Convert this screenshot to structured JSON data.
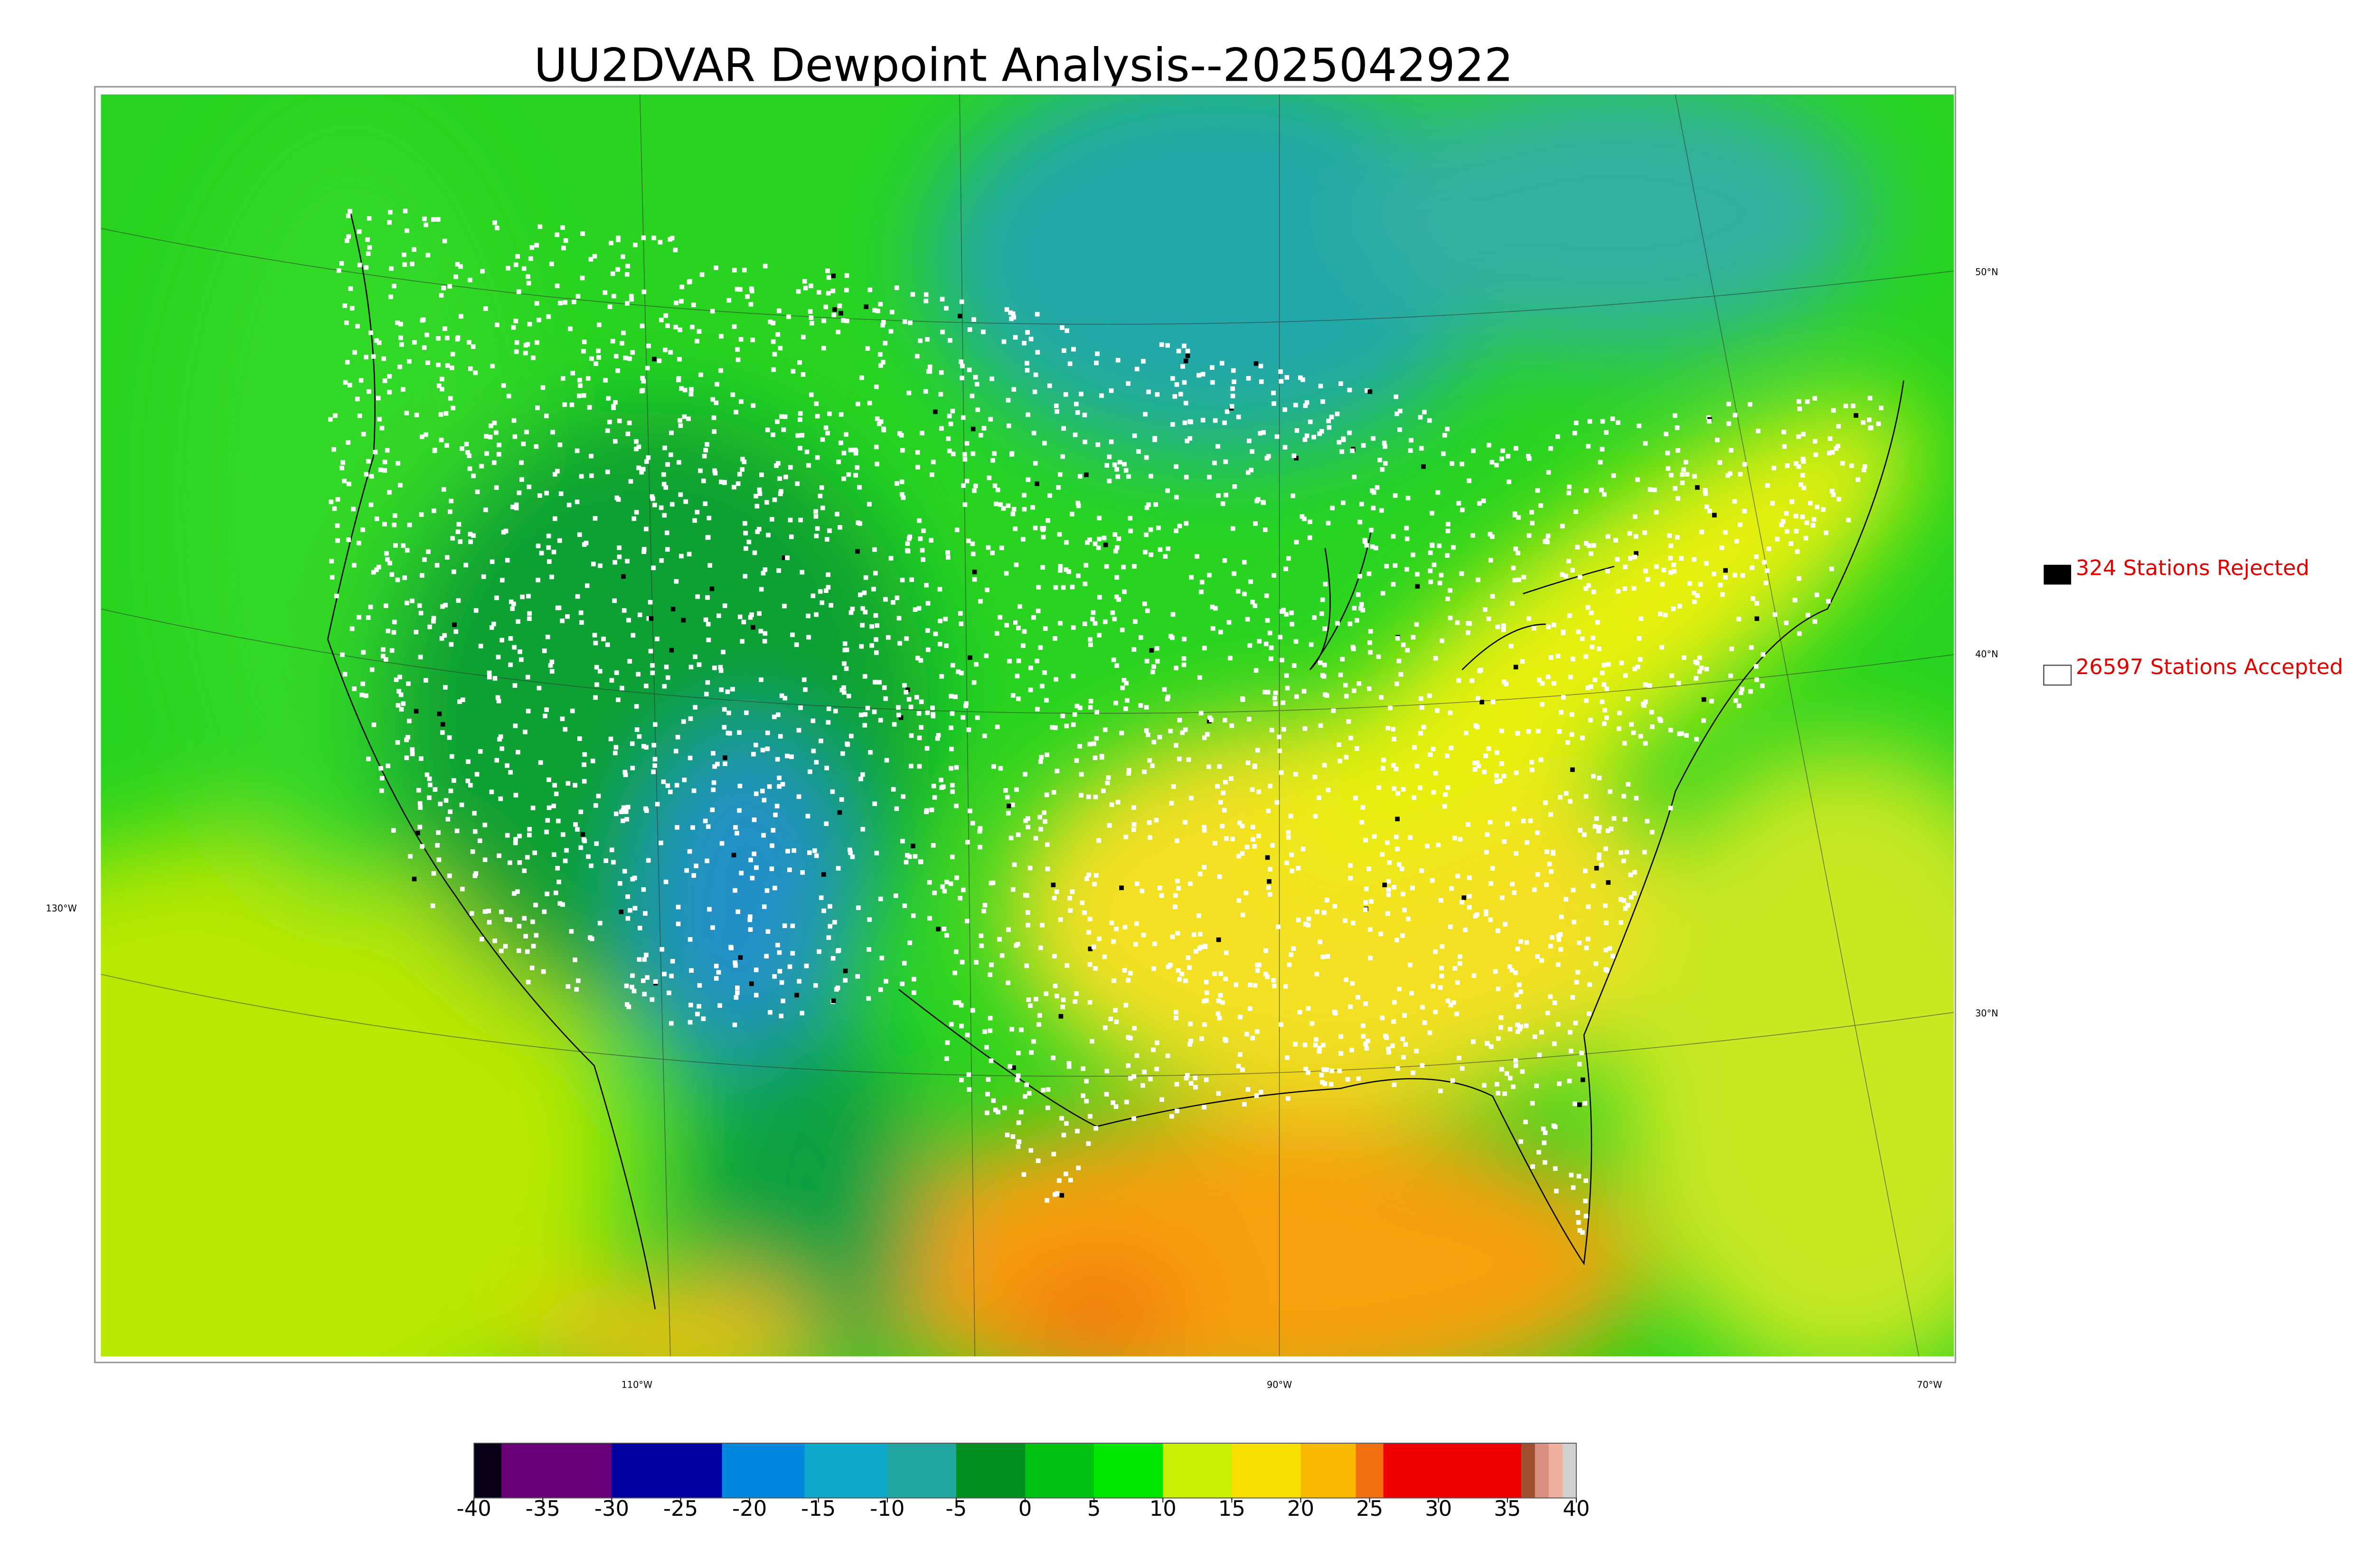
{
  "title": "UU2DVAR Dewpoint Analysis--2025042922",
  "map": {
    "latitude_labels": [
      "50°N",
      "40°N",
      "30°N"
    ],
    "longitude_labels": [
      "130°W",
      "110°W",
      "90°W",
      "70°W"
    ]
  },
  "legend": {
    "rejected": "324 Stations Rejected",
    "accepted": "26597 Stations Accepted"
  },
  "colorbar": {
    "lim": [
      -40,
      40
    ],
    "ticks": [
      -40,
      -35,
      -30,
      -25,
      -20,
      -15,
      -10,
      -5,
      0,
      5,
      10,
      15,
      20,
      25,
      30,
      35,
      40
    ],
    "segments": [
      {
        "from": -40,
        "to": -38,
        "color": "#080018"
      },
      {
        "from": -38,
        "to": -30,
        "color": "#6a0078"
      },
      {
        "from": -30,
        "to": -22,
        "color": "#0000a0"
      },
      {
        "from": -22,
        "to": -16,
        "color": "#0088e0"
      },
      {
        "from": -16,
        "to": -10,
        "color": "#10a8c8"
      },
      {
        "from": -10,
        "to": -5,
        "color": "#20a8a0"
      },
      {
        "from": -5,
        "to": 0,
        "color": "#009020"
      },
      {
        "from": 0,
        "to": 5,
        "color": "#00c010"
      },
      {
        "from": 5,
        "to": 10,
        "color": "#00e800"
      },
      {
        "from": 10,
        "to": 15,
        "color": "#c8f000"
      },
      {
        "from": 15,
        "to": 20,
        "color": "#f8e000"
      },
      {
        "from": 20,
        "to": 24,
        "color": "#f8b800"
      },
      {
        "from": 24,
        "to": 26,
        "color": "#f07010"
      },
      {
        "from": 26,
        "to": 36,
        "color": "#f00000"
      },
      {
        "from": 36,
        "to": 37,
        "color": "#a05030"
      },
      {
        "from": 37,
        "to": 38,
        "color": "#d89080"
      },
      {
        "from": 38,
        "to": 39,
        "color": "#f0b0a0"
      },
      {
        "from": 39,
        "to": 40,
        "color": "#d0d0d0"
      }
    ]
  }
}
